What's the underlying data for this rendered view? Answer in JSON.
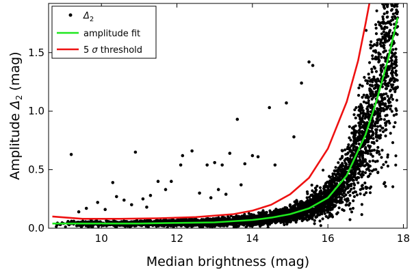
{
  "chart_data": {
    "type": "scatter",
    "title": "",
    "xlabel": "Median brightness (mag)",
    "ylabel_prefix": "Amplitude ",
    "ylabel_symbol": "Δ",
    "ylabel_subscript": "2",
    "ylabel_suffix": " (mag)",
    "xlim": [
      8.6,
      18.1
    ],
    "ylim": [
      0.0,
      1.92
    ],
    "x_ticks": [
      10,
      12,
      14,
      16,
      18
    ],
    "y_ticks": [
      0.0,
      0.5,
      1.0,
      1.5
    ],
    "x_tick_labels": [
      "10",
      "12",
      "14",
      "16",
      "18"
    ],
    "y_tick_labels": [
      "0.0",
      "0.5",
      "1.0",
      "1.5"
    ],
    "grid": false,
    "legend_position": "top-left",
    "series": [
      {
        "name_symbol": "Δ",
        "name_subscript": "2",
        "kind": "scatter",
        "color": "#000000",
        "outliers": [
          [
            9.2,
            0.63
          ],
          [
            10.3,
            0.39
          ],
          [
            10.9,
            0.65
          ],
          [
            11.5,
            0.4
          ],
          [
            11.7,
            0.33
          ],
          [
            11.85,
            0.4
          ],
          [
            12.1,
            0.54
          ],
          [
            12.15,
            0.62
          ],
          [
            12.4,
            0.66
          ],
          [
            12.8,
            0.54
          ],
          [
            13.0,
            0.56
          ],
          [
            13.2,
            0.54
          ],
          [
            13.4,
            0.64
          ],
          [
            13.6,
            0.93
          ],
          [
            13.8,
            0.55
          ],
          [
            14.0,
            0.62
          ],
          [
            14.15,
            0.61
          ],
          [
            14.45,
            1.03
          ],
          [
            14.6,
            0.54
          ],
          [
            14.9,
            1.07
          ],
          [
            15.1,
            0.78
          ],
          [
            15.3,
            1.24
          ],
          [
            15.5,
            1.42
          ],
          [
            15.6,
            1.39
          ],
          [
            9.9,
            0.22
          ],
          [
            10.4,
            0.27
          ],
          [
            10.6,
            0.24
          ],
          [
            11.1,
            0.25
          ],
          [
            11.3,
            0.28
          ],
          [
            12.6,
            0.3
          ],
          [
            12.9,
            0.26
          ],
          [
            13.1,
            0.33
          ],
          [
            13.3,
            0.29
          ],
          [
            13.7,
            0.37
          ],
          [
            9.4,
            0.14
          ],
          [
            9.6,
            0.17
          ],
          [
            10.1,
            0.16
          ],
          [
            10.8,
            0.2
          ],
          [
            11.2,
            0.18
          ]
        ],
        "band_center": [
          [
            8.8,
            0.04
          ],
          [
            10.0,
            0.04
          ],
          [
            11.0,
            0.04
          ],
          [
            12.0,
            0.045
          ],
          [
            13.0,
            0.05
          ],
          [
            14.0,
            0.07
          ],
          [
            14.5,
            0.09
          ],
          [
            15.0,
            0.12
          ],
          [
            15.5,
            0.17
          ],
          [
            16.0,
            0.26
          ],
          [
            16.5,
            0.45
          ],
          [
            17.0,
            0.8
          ],
          [
            17.3,
            1.1
          ],
          [
            17.6,
            1.45
          ],
          [
            17.8,
            1.75
          ]
        ]
      },
      {
        "name": "amplitude fit",
        "kind": "line",
        "color": "#1ee81e",
        "x": [
          8.7,
          10.0,
          11.0,
          12.0,
          13.0,
          14.0,
          14.5,
          15.0,
          15.5,
          16.0,
          16.5,
          17.0,
          17.3,
          17.6,
          17.85
        ],
        "y": [
          0.04,
          0.04,
          0.04,
          0.045,
          0.05,
          0.07,
          0.09,
          0.12,
          0.17,
          0.26,
          0.45,
          0.8,
          1.1,
          1.45,
          1.8
        ]
      },
      {
        "name_prefix": "5 ",
        "name_symbol": "σ",
        "name_suffix": " threshold",
        "kind": "line",
        "color": "#ee1111",
        "x": [
          8.7,
          9.5,
          10.5,
          11.5,
          12.5,
          13.5,
          14.0,
          14.5,
          15.0,
          15.5,
          16.0,
          16.5,
          16.8,
          17.0,
          17.1
        ],
        "y": [
          0.1,
          0.08,
          0.08,
          0.085,
          0.095,
          0.12,
          0.15,
          0.2,
          0.29,
          0.43,
          0.68,
          1.08,
          1.43,
          1.75,
          1.92
        ]
      }
    ]
  }
}
